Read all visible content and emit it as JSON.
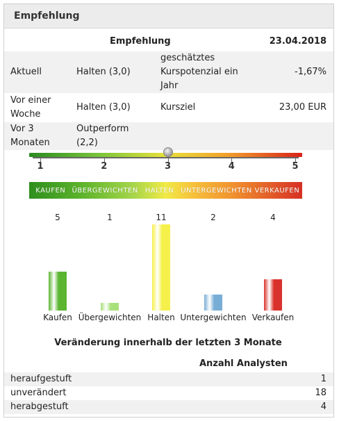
{
  "panel": {
    "title": "Empfehlung"
  },
  "table": {
    "header": {
      "label": "Empfehlung",
      "date": "23.04.2018"
    },
    "rows": [
      {
        "period": "Aktuell",
        "rating": "Halten (3,0)",
        "metric": "geschätztes Kurspotenzial ein Jahr",
        "value": "-1,67%"
      },
      {
        "period": "Vor einer Woche",
        "rating": "Halten (3,0)",
        "metric": "Kursziel",
        "value": "23,00 EUR"
      },
      {
        "period": "Vor 3 Monaten",
        "rating": "Outperform (2,2)",
        "metric": "",
        "value": ""
      }
    ]
  },
  "scale": {
    "ticks": [
      "1",
      "2",
      "3",
      "4",
      "5"
    ],
    "bands": [
      "KAUFEN",
      "ÜBERGEWICHTEN",
      "HALTEN",
      "UNTERGEWICHTEN",
      "VERKAUFEN"
    ],
    "current_score": 3.0,
    "min": 1,
    "max": 5
  },
  "chart_data": {
    "type": "bar",
    "categories": [
      "Kaufen",
      "Übergewichten",
      "Halten",
      "Untergewichten",
      "Verkaufen"
    ],
    "values": [
      5,
      1,
      11,
      2,
      4
    ],
    "ylim": [
      0,
      11
    ],
    "colors": [
      "#5bb531",
      "#a8e07a",
      "#f5f04a",
      "#78add6",
      "#d9322c"
    ]
  },
  "changes": {
    "title": "Veränderung innerhalb der letzten 3 Monate",
    "column_header": "Anzahl Analysten",
    "rows": [
      {
        "label": "heraufgestuft",
        "value": "1"
      },
      {
        "label": "unverändert",
        "value": "18"
      },
      {
        "label": "herabgestuft",
        "value": "4"
      }
    ]
  }
}
